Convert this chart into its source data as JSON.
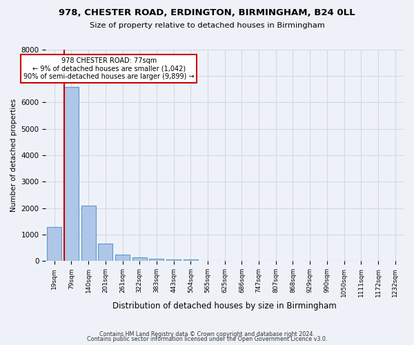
{
  "title_line1": "978, CHESTER ROAD, ERDINGTON, BIRMINGHAM, B24 0LL",
  "title_line2": "Size of property relative to detached houses in Birmingham",
  "xlabel": "Distribution of detached houses by size in Birmingham",
  "ylabel": "Number of detached properties",
  "footnote_line1": "Contains HM Land Registry data © Crown copyright and database right 2024.",
  "footnote_line2": "Contains public sector information licensed under the Open Government Licence v3.0.",
  "bar_labels": [
    "19sqm",
    "79sqm",
    "140sqm",
    "201sqm",
    "261sqm",
    "322sqm",
    "383sqm",
    "443sqm",
    "504sqm",
    "565sqm",
    "625sqm",
    "686sqm",
    "747sqm",
    "807sqm",
    "868sqm",
    "929sqm",
    "990sqm",
    "1050sqm",
    "1111sqm",
    "1172sqm",
    "1232sqm"
  ],
  "bar_values": [
    1290,
    6580,
    2080,
    650,
    250,
    140,
    95,
    65,
    65,
    0,
    0,
    0,
    0,
    0,
    0,
    0,
    0,
    0,
    0,
    0,
    0
  ],
  "bar_color": "#aec6e8",
  "bar_edge_color": "#5a9ac8",
  "annotation_box_text": "978 CHESTER ROAD: 77sqm\n← 9% of detached houses are smaller (1,042)\n90% of semi-detached houses are larger (9,899) →",
  "annotation_box_color": "#cc0000",
  "property_line_x": 0.57,
  "ylim": [
    0,
    8000
  ],
  "yticks": [
    0,
    1000,
    2000,
    3000,
    4000,
    5000,
    6000,
    7000,
    8000
  ],
  "grid_color": "#d0d8e8",
  "background_color": "#eef2f8"
}
